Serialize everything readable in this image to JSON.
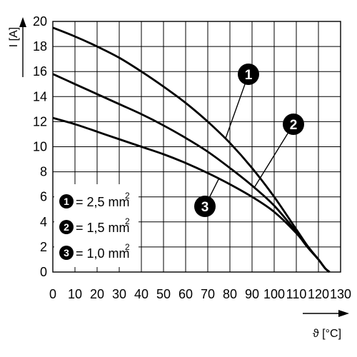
{
  "chart_data": {
    "type": "line",
    "xlabel": "ϑ [°C]",
    "ylabel": "I [A]",
    "xlim": [
      0,
      130
    ],
    "ylim": [
      0,
      20
    ],
    "x_ticks": [
      "0",
      "10",
      "20",
      "30",
      "40",
      "50",
      "60",
      "70",
      "80",
      "90",
      "100",
      "110",
      "120",
      "130"
    ],
    "y_ticks": [
      "0",
      "2",
      "4",
      "6",
      "8",
      "10",
      "12",
      "14",
      "16",
      "18",
      "20"
    ],
    "grid": true,
    "series": [
      {
        "name": "= 2,5 mm",
        "marker": "1",
        "values_x": [
          0,
          10,
          20,
          30,
          40,
          50,
          60,
          70,
          80,
          90,
          100,
          110,
          115,
          120,
          123,
          125
        ],
        "values_y": [
          19.5,
          18.8,
          18.0,
          17.1,
          16.0,
          14.8,
          13.5,
          12.0,
          10.3,
          8.3,
          6.0,
          3.4,
          2.1,
          1.0,
          0.3,
          0.0
        ]
      },
      {
        "name": "= 1,5 mm",
        "marker": "2",
        "values_x": [
          0,
          10,
          20,
          30,
          40,
          50,
          60,
          70,
          80,
          90,
          100,
          110,
          115,
          120,
          123,
          125
        ],
        "values_y": [
          15.8,
          15.0,
          14.2,
          13.4,
          12.6,
          11.7,
          10.7,
          9.6,
          8.3,
          6.9,
          5.3,
          3.2,
          2.0,
          1.0,
          0.3,
          0.0
        ]
      },
      {
        "name": "= 1,0 mm",
        "marker": "3",
        "values_x": [
          0,
          10,
          20,
          30,
          40,
          50,
          60,
          70,
          80,
          90,
          100,
          110,
          115,
          120,
          123,
          125
        ],
        "values_y": [
          12.3,
          11.8,
          11.2,
          10.6,
          10.0,
          9.4,
          8.7,
          7.9,
          7.0,
          6.0,
          4.8,
          3.1,
          2.0,
          1.0,
          0.3,
          0.0
        ]
      }
    ],
    "legend": {
      "placement": "bottom-left",
      "items": [
        {
          "marker": "1",
          "text": "= 2,5 mm",
          "sup": "2"
        },
        {
          "marker": "2",
          "text": "= 1,5 mm",
          "sup": "2"
        },
        {
          "marker": "3",
          "text": "= 1,0 mm",
          "sup": "2"
        }
      ]
    },
    "annotations": [
      {
        "marker": "1",
        "series": 0,
        "at_x": 78
      },
      {
        "marker": "2",
        "series": 1,
        "at_x": 91
      },
      {
        "marker": "3",
        "series": 2,
        "at_x": 75
      }
    ]
  }
}
